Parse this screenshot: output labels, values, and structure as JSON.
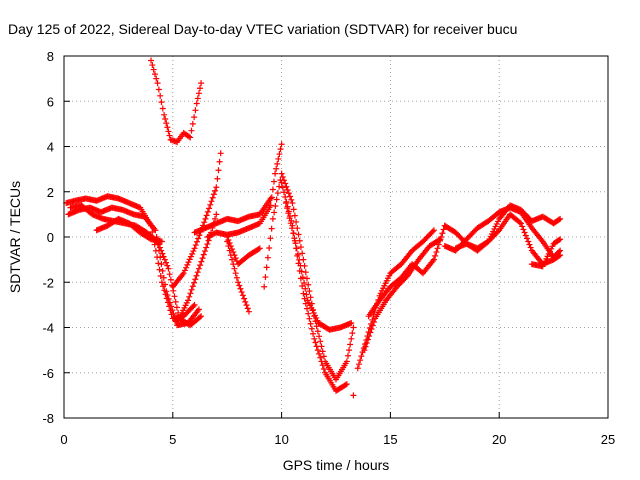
{
  "chart_data": {
    "type": "scatter",
    "title": "Day 125 of 2022, Sidereal Day-to-day VTEC variation (SDTVAR) for receiver bucu",
    "xlabel": "GPS time / hours",
    "ylabel": "SDTVAR / TECUs",
    "xlim": [
      0,
      25
    ],
    "ylim": [
      -8,
      8
    ],
    "xticks": [
      "0",
      "5",
      "10",
      "15",
      "20",
      "25"
    ],
    "yticks": [
      "8",
      "6",
      "4",
      "2",
      "0",
      "-2",
      "-4",
      "-6",
      "-8"
    ],
    "grid": true,
    "marker": "+",
    "series_color": "#ff0000",
    "series": [
      {
        "x": [
          0.1,
          0.5,
          1,
          1.5,
          2,
          2.5,
          3,
          3.5,
          4,
          4.5,
          5,
          5.5,
          6
        ],
        "y": [
          1.5,
          1.6,
          1.7,
          1.6,
          1.8,
          1.7,
          1.5,
          1.3,
          0.5,
          -2,
          -3.6,
          -3.5,
          -3
        ]
      },
      {
        "x": [
          0.2,
          0.7,
          1.2,
          1.7,
          2.2,
          2.7,
          3.2,
          3.7,
          4.2,
          4.7,
          5.2,
          5.7,
          6.2
        ],
        "y": [
          1.0,
          1.2,
          1.3,
          1.1,
          1.3,
          1.2,
          1.0,
          0.9,
          0.3,
          -2.4,
          -3.9,
          -3.8,
          -3.2
        ]
      },
      {
        "x": [
          0.3,
          0.8,
          1.3,
          1.8,
          2.3,
          2.8,
          3.3,
          3.8,
          4.3,
          4.8,
          5.3,
          5.8,
          6.3
        ],
        "y": [
          1.3,
          1.4,
          1.0,
          0.8,
          0.7,
          0.6,
          0.5,
          0.2,
          -0.2,
          -1.4,
          -3.6,
          -3.9,
          -3.5
        ]
      },
      {
        "x": [
          1.5,
          2,
          2.5,
          3,
          3.5,
          4,
          4.5
        ],
        "y": [
          0.3,
          0.5,
          0.8,
          0.6,
          0.2,
          -0.1,
          -0.2
        ]
      },
      {
        "x": [
          5,
          5.5,
          6,
          6.5,
          7,
          7.2
        ],
        "y": [
          -2.2,
          -1.6,
          -0.5,
          0.8,
          2.2,
          3.7
        ]
      },
      {
        "x": [
          5.2,
          5.7,
          6.2,
          6.7,
          7
        ],
        "y": [
          -3.8,
          -2.8,
          -1.4,
          0,
          1.0
        ]
      },
      {
        "x": [
          6,
          6.5,
          7,
          7.5,
          8,
          8.5,
          9,
          9.5
        ],
        "y": [
          0.2,
          0.4,
          0.6,
          0.8,
          0.7,
          0.9,
          1.0,
          1.7
        ]
      },
      {
        "x": [
          7.5,
          8,
          8.5,
          9
        ],
        "y": [
          0,
          -1.2,
          -0.8,
          -0.5
        ]
      },
      {
        "x": [
          7.5,
          8,
          8.5
        ],
        "y": [
          -0.2,
          -2.0,
          -3.3
        ]
      },
      {
        "x": [
          6.6,
          7,
          7.5,
          8,
          8.5,
          9,
          9.5,
          9.7,
          10
        ],
        "y": [
          0.0,
          0.2,
          0.1,
          0.2,
          0.4,
          0.6,
          1.4,
          2.8,
          4.1
        ]
      },
      {
        "x": [
          9.2,
          9.6,
          10,
          10.5,
          11,
          11.5,
          12,
          12.5,
          13,
          13.3
        ],
        "y": [
          -2.2,
          0.8,
          2.8,
          1.5,
          -1,
          -3.5,
          -5.5,
          -6.3,
          -5.5,
          -4
        ]
      },
      {
        "x": [
          10,
          10.5,
          11,
          11.5,
          12,
          12.5,
          13
        ],
        "y": [
          2.4,
          0.5,
          -2.5,
          -4.5,
          -6,
          -6.8,
          -6.5
        ]
      },
      {
        "x": [
          10.2,
          10.7,
          11.2,
          11.7,
          12.2,
          12.7,
          13.2
        ],
        "y": [
          1.5,
          -0.5,
          -2.8,
          -3.8,
          -4.1,
          -4.0,
          -3.8
        ]
      },
      {
        "x": [
          4,
          4.3,
          4.6,
          4.9,
          5.2,
          5.5,
          5.8,
          6.1,
          6.3
        ],
        "y": [
          7.8,
          6.8,
          5.4,
          4.3,
          4.2,
          4.6,
          4.4,
          5.9,
          6.8
        ]
      },
      {
        "x": [
          13.5,
          14,
          14.5,
          15,
          15.5,
          16,
          16.5,
          17
        ],
        "y": [
          -5.8,
          -4.2,
          -2.6,
          -1.6,
          -1.2,
          -0.6,
          -0.2,
          0.3
        ]
      },
      {
        "x": [
          13.8,
          14.3,
          14.8,
          15.3,
          15.8,
          16.3,
          16.8,
          17.3
        ],
        "y": [
          -5,
          -3.6,
          -2.8,
          -2.2,
          -1.7,
          -1.0,
          -0.4,
          -0.1
        ]
      },
      {
        "x": [
          14,
          14.5,
          15,
          15.5,
          16,
          16.5,
          17,
          17.5
        ],
        "y": [
          -3.5,
          -2.8,
          -2.2,
          -1.8,
          -1.2,
          -1.6,
          -1.0,
          0.5
        ]
      },
      {
        "x": [
          17.5,
          18,
          18.5,
          19,
          19.5,
          20,
          20.5,
          21,
          21.5,
          22,
          22.5,
          22.8
        ],
        "y": [
          0.5,
          0.2,
          -0.3,
          -0.6,
          -0.2,
          0.8,
          1.4,
          1.2,
          0.7,
          0.9,
          0.6,
          0.8
        ]
      },
      {
        "x": [
          17.5,
          18,
          18.5,
          19,
          19.5,
          20,
          20.5,
          21,
          21.5,
          22,
          22.5,
          22.8
        ],
        "y": [
          -0.4,
          -0.6,
          -0.1,
          0.4,
          0.7,
          1.1,
          1.3,
          1.1,
          0.4,
          -0.2,
          -0.9,
          -0.6
        ]
      },
      {
        "x": [
          18,
          18.5,
          19,
          19.5,
          20,
          20.5,
          21,
          21.5,
          22,
          22.5,
          22.8
        ],
        "y": [
          -0.5,
          -0.3,
          -0.5,
          -0.2,
          0.3,
          1.0,
          0.6,
          -0.6,
          -1.2,
          -1.0,
          -0.8
        ]
      },
      {
        "x": [
          21.5,
          22,
          22.5,
          22.8
        ],
        "y": [
          -1.2,
          -1.3,
          -0.3,
          -0.1
        ]
      },
      {
        "x": [
          13.3
        ],
        "y": [
          -7.0
        ]
      }
    ]
  }
}
